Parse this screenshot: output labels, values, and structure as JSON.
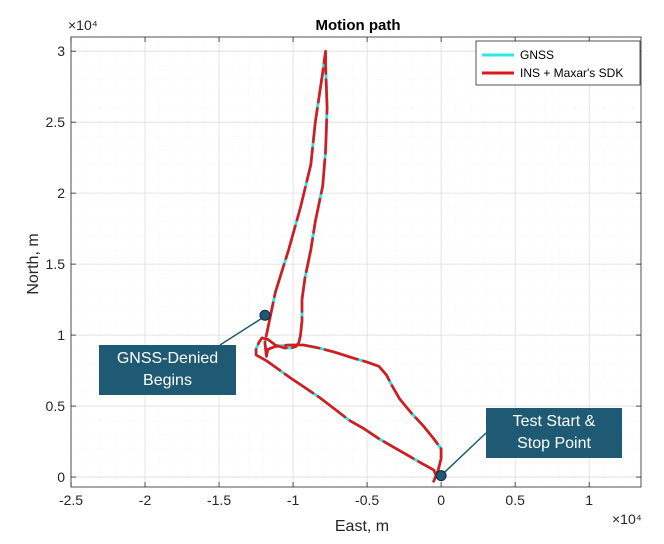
{
  "chart_data": {
    "type": "line",
    "title": "Motion path",
    "xlabel": "East, m",
    "ylabel": "North, m",
    "x_exponent_label": "×10⁴",
    "y_exponent_label": "×10⁴",
    "xlim": [
      -2.5,
      1.35
    ],
    "ylim": [
      -0.07,
      3.1
    ],
    "xticks": [
      -2.5,
      -2,
      -1.5,
      -1,
      -0.5,
      0,
      0.5,
      1
    ],
    "xtick_labels": [
      "-2.5",
      "-2",
      "-1.5",
      "-1",
      "-0.5",
      "0",
      "0.5",
      "1"
    ],
    "yticks": [
      0,
      0.5,
      1,
      1.5,
      2,
      2.5,
      3
    ],
    "ytick_labels": [
      "0",
      "0.5",
      "1",
      "1.5",
      "2",
      "2.5",
      "3"
    ],
    "grid": true,
    "legend_position": "top-right",
    "series": [
      {
        "name": "GNSS",
        "color": "#2ee6e6",
        "x": [
          -0.05,
          -0.02,
          0.0,
          0.0,
          -0.05,
          -0.12,
          -0.2,
          -0.28,
          -0.33,
          -0.37,
          -0.42,
          -0.5,
          -0.6,
          -0.72,
          -0.83,
          -0.93,
          -1.03,
          -1.12,
          -1.17,
          -1.18,
          -1.19,
          -1.17,
          -1.12,
          -1.03,
          -0.95,
          -0.88,
          -0.85,
          -0.8,
          -0.78,
          -0.78,
          -0.77,
          -0.78,
          -0.8,
          -0.85,
          -0.88,
          -0.92,
          -0.94,
          -0.94,
          -0.95,
          -0.96,
          -0.98,
          -1.01,
          -1.06,
          -1.12,
          -1.17,
          -1.21,
          -1.23,
          -1.25,
          -1.25,
          -1.18,
          -1.1,
          -1.02,
          -0.92,
          -0.82,
          -0.72,
          -0.62,
          -0.52,
          -0.42,
          -0.32,
          -0.22,
          -0.12,
          -0.05,
          -0.03
        ],
        "y": [
          -0.03,
          0.05,
          0.13,
          0.2,
          0.27,
          0.36,
          0.45,
          0.55,
          0.64,
          0.72,
          0.78,
          0.81,
          0.84,
          0.88,
          0.91,
          0.93,
          0.93,
          0.92,
          0.9,
          0.85,
          0.95,
          1.05,
          1.3,
          1.6,
          1.9,
          2.2,
          2.5,
          2.85,
          3.0,
          2.9,
          2.6,
          2.3,
          2.05,
          1.8,
          1.6,
          1.4,
          1.25,
          1.1,
          1.0,
          0.95,
          0.92,
          0.91,
          0.91,
          0.93,
          0.97,
          0.98,
          0.95,
          0.9,
          0.86,
          0.82,
          0.76,
          0.7,
          0.63,
          0.56,
          0.48,
          0.4,
          0.34,
          0.27,
          0.21,
          0.15,
          0.09,
          0.05,
          0.0
        ]
      },
      {
        "name": "INS + Maxar's SDK",
        "color": "#e0161b",
        "x": [
          -0.05,
          -0.02,
          0.0,
          0.0,
          -0.05,
          -0.12,
          -0.2,
          -0.28,
          -0.33,
          -0.37,
          -0.42,
          -0.5,
          -0.6,
          -0.72,
          -0.83,
          -0.93,
          -1.03,
          -1.12,
          -1.17,
          -1.18,
          -1.19,
          -1.17,
          -1.12,
          -1.03,
          -0.95,
          -0.88,
          -0.85,
          -0.8,
          -0.78,
          -0.78,
          -0.77,
          -0.78,
          -0.8,
          -0.85,
          -0.88,
          -0.92,
          -0.94,
          -0.94,
          -0.95,
          -0.96,
          -0.98,
          -1.01,
          -1.06,
          -1.12,
          -1.17,
          -1.21,
          -1.23,
          -1.25,
          -1.25,
          -1.18,
          -1.1,
          -1.02,
          -0.92,
          -0.82,
          -0.72,
          -0.62,
          -0.52,
          -0.42,
          -0.32,
          -0.22,
          -0.12,
          -0.05,
          -0.03
        ],
        "y": [
          -0.03,
          0.05,
          0.13,
          0.2,
          0.27,
          0.36,
          0.45,
          0.55,
          0.64,
          0.72,
          0.78,
          0.81,
          0.84,
          0.88,
          0.91,
          0.93,
          0.93,
          0.92,
          0.9,
          0.85,
          0.95,
          1.05,
          1.3,
          1.6,
          1.9,
          2.2,
          2.5,
          2.85,
          3.0,
          2.9,
          2.6,
          2.3,
          2.05,
          1.8,
          1.6,
          1.4,
          1.25,
          1.1,
          1.0,
          0.95,
          0.92,
          0.91,
          0.91,
          0.93,
          0.97,
          0.98,
          0.95,
          0.9,
          0.86,
          0.82,
          0.76,
          0.7,
          0.63,
          0.56,
          0.48,
          0.4,
          0.34,
          0.27,
          0.21,
          0.15,
          0.09,
          0.05,
          0.0
        ]
      }
    ],
    "annotations": [
      {
        "text": "GNSS-Denied\nBegins",
        "point": [
          -1.19,
          1.14
        ]
      },
      {
        "text": "Test Start &\nStop Point",
        "point": [
          0.0,
          0.01
        ]
      }
    ]
  }
}
